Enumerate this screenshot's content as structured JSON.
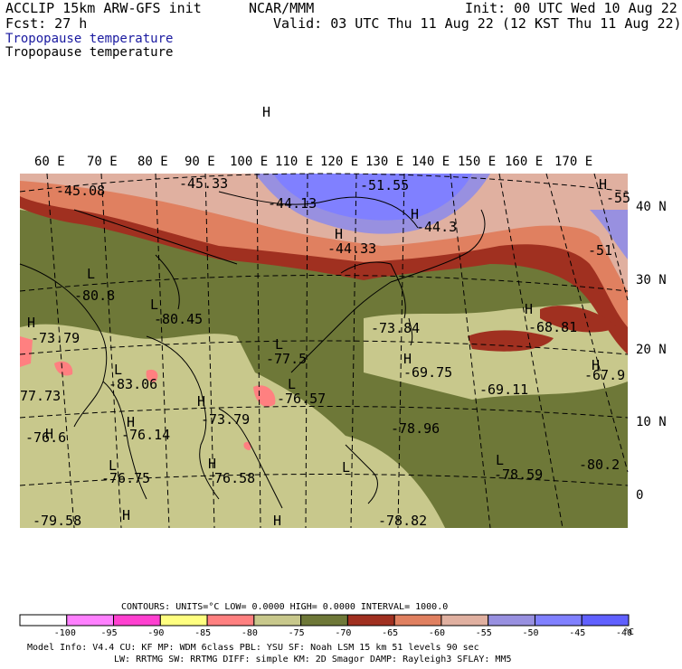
{
  "header": {
    "model": "ACCLIP 15km ARW-GFS init",
    "fcst": "Fcst:   27 h",
    "org": "NCAR/MMM",
    "init": "Init: 00 UTC Wed 10 Aug 22",
    "valid": "Valid: 03 UTC Thu 11 Aug 22 (12 KST Thu 11 Aug 22)",
    "field1": "Tropopause temperature",
    "field2": "Tropopause temperature"
  },
  "axes": {
    "lon_labels": [
      "60 E",
      "70 E",
      "80 E",
      "90 E",
      "100 E",
      "110 E",
      "120 E",
      "130 E",
      "140 E",
      "150 E",
      "160 E",
      "170 E"
    ],
    "lat_labels": [
      "40 N",
      "30 N",
      "20 N",
      "10 N",
      "0"
    ]
  },
  "map_labels": [
    {
      "t": "-45.08"
    },
    {
      "t": "-45.33"
    },
    {
      "t": "-44.13"
    },
    {
      "t": "-51.55"
    },
    {
      "t": "-55"
    },
    {
      "t": "-44.3"
    },
    {
      "t": "-44.33"
    },
    {
      "t": "-51"
    },
    {
      "t": "-80.8"
    },
    {
      "t": "-80.45"
    },
    {
      "t": "-73.79"
    },
    {
      "t": "-77.5"
    },
    {
      "t": "-73.84"
    },
    {
      "t": "-68.81"
    },
    {
      "t": "-69.75"
    },
    {
      "t": "-67.9"
    },
    {
      "t": "-69.11"
    },
    {
      "t": "-83.06"
    },
    {
      "t": "-76.57"
    },
    {
      "t": "77.73"
    },
    {
      "t": "-73.79"
    },
    {
      "t": "-76.6"
    },
    {
      "t": "-76.14"
    },
    {
      "t": "-78.96"
    },
    {
      "t": "-80.2"
    },
    {
      "t": "-76.58"
    },
    {
      "t": "-76.75"
    },
    {
      "t": "-78.59"
    },
    {
      "t": "-79.58"
    },
    {
      "t": "-78.82"
    },
    {
      "t": "H"
    },
    {
      "t": "H"
    },
    {
      "t": "H"
    },
    {
      "t": "H"
    },
    {
      "t": "H"
    },
    {
      "t": "H"
    },
    {
      "t": "H"
    },
    {
      "t": "H"
    },
    {
      "t": "H"
    },
    {
      "t": "H"
    },
    {
      "t": "H"
    },
    {
      "t": "H"
    },
    {
      "t": "H"
    },
    {
      "t": "H"
    },
    {
      "t": "L"
    },
    {
      "t": "L"
    },
    {
      "t": "L"
    },
    {
      "t": "L"
    },
    {
      "t": "L"
    },
    {
      "t": "L"
    },
    {
      "t": "L"
    },
    {
      "t": "L"
    }
  ],
  "contours": {
    "text": "CONTOURS:  UNITS=°C  LOW=  0.0000       HIGH=  0.0000      INTERVAL=   1000.0"
  },
  "colorbar": {
    "colors": [
      "#ffffff",
      "#ff80ff",
      "#ff40d0",
      "#ffff80",
      "#ff8080",
      "#c8c88c",
      "#6e7838",
      "#a03020",
      "#e08060",
      "#e0b0a0",
      "#9890e0",
      "#8080ff",
      "#6060ff"
    ],
    "ticks": [
      "-100",
      "-95",
      "-90",
      "-85",
      "-80",
      "-75",
      "-70",
      "-65",
      "-60",
      "-55",
      "-50",
      "-45",
      "-40"
    ],
    "unit": "°C"
  },
  "footer": {
    "line1": "Model Info: V4.4      CU: KF      MP: WDM 6class  PBL: YSU      SF: Noah LSM    15 km   51 levels   90 sec",
    "line2": "LW: RRTMG    SW: RRTMG  DIFF: simple KM: 2D Smagor DAMP: Rayleigh3  SFLAY: MM5"
  },
  "colors": {
    "olive_light": "#c8c88c",
    "olive_dark": "#6e7838",
    "dark_red": "#a03020",
    "salmon": "#e08060",
    "pink_light": "#e0b0a0",
    "lavender": "#9890e0",
    "blue": "#8080ff",
    "pink": "#ff8080"
  }
}
